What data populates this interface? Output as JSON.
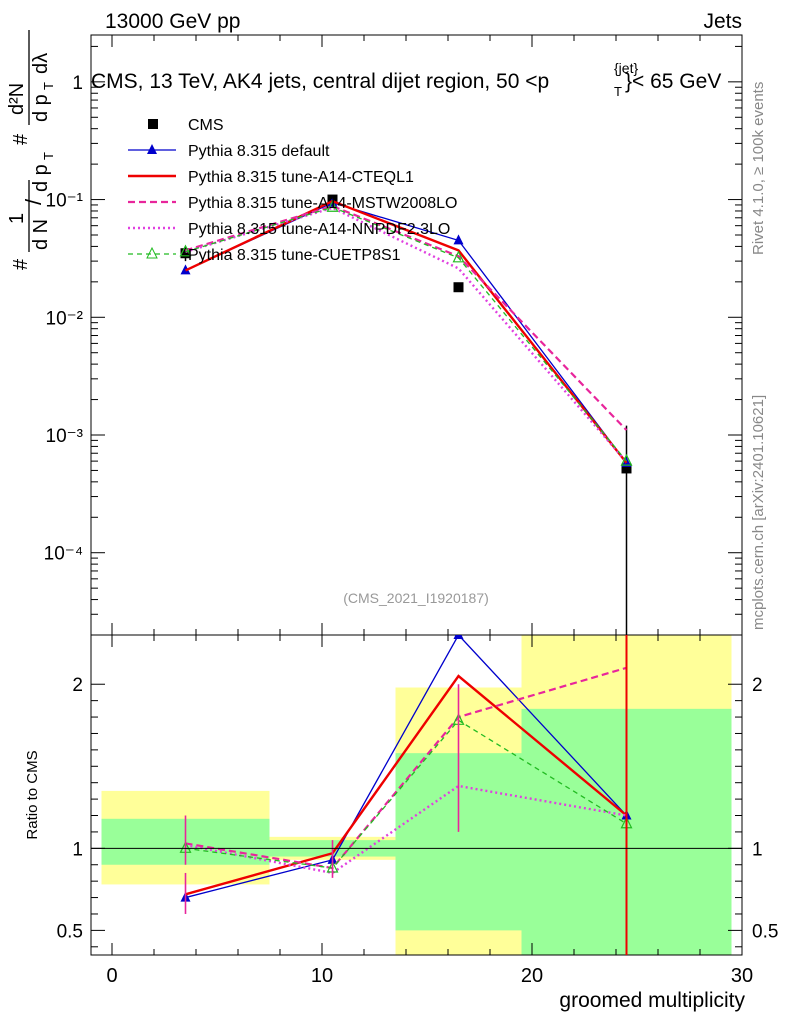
{
  "header": {
    "left": "13000 GeV pp",
    "right": "Jets",
    "title": "CMS, 13 TeV, AK4 jets, central dijet region, 50 <p",
    "title_sup": "{jet}",
    "title_sub": "T",
    "title_end": "}< 65 GeV"
  },
  "side": {
    "rivet": "Rivet 4.1.0, ≥ 100k events",
    "mcplots": "mcplots.cern.ch [arXiv:2401.10621]"
  },
  "analysis_tag": "(CMS_2021_I1920187)",
  "ylabel_main": {
    "hash1": "#",
    "one": "1",
    "dN": "d N",
    "slash": "/",
    "dpT": "d p",
    "T": "T",
    "hash2": "#",
    "d2N": "d²N",
    "dpTdl": "d p",
    "T2": "T",
    "dl": "dλ"
  },
  "ylabel_ratio": "Ratio to CMS",
  "xlabel": "groomed multiplicity",
  "colors": {
    "data": "#000000",
    "default": "#0000cc",
    "cteql1": "#ee0000",
    "mstw": "#e8259b",
    "nnpdf": "#e040e0",
    "cuetp": "#22bb22",
    "band_inner": "#99ff99",
    "band_outer": "#ffff99"
  },
  "chart_data": {
    "type": "line",
    "x": [
      3.5,
      10.5,
      16.5,
      24.5
    ],
    "bin_edges": [
      -0.5,
      7.5,
      13.5,
      19.5,
      29.5
    ],
    "xlim": [
      -1,
      30
    ],
    "xticks": [
      "0",
      "10",
      "20",
      "30"
    ],
    "main": {
      "yscale": "log",
      "ylim": [
        2e-05,
        2.5
      ],
      "yticks": [
        "1",
        "10⁻¹",
        "10⁻²",
        "10⁻³",
        "10⁻⁴"
      ],
      "series": [
        {
          "name": "CMS",
          "key": "data",
          "style": "marker-square",
          "values": [
            0.035,
            0.1,
            0.018,
            0.00052
          ],
          "err_up": [
            0.04,
            0.104,
            0.0185,
            0.0012
          ],
          "err_down": [
            0.03,
            0.096,
            0.017,
            1e-05
          ]
        },
        {
          "name": "Pythia 8.315 default",
          "key": "default",
          "style": "solid-triangle",
          "values": [
            0.025,
            0.094,
            0.045,
            0.00058
          ]
        },
        {
          "name": "Pythia 8.315 tune-A14-CTEQL1",
          "key": "cteql1",
          "style": "solid-thick",
          "values": [
            0.025,
            0.097,
            0.037,
            0.00058
          ]
        },
        {
          "name": "Pythia 8.315 tune-A14-MSTW2008LO",
          "key": "mstw",
          "style": "dashed",
          "values": [
            0.037,
            0.088,
            0.033,
            0.0011
          ]
        },
        {
          "name": "Pythia 8.315 tune-A14-NNPDF2.3LO",
          "key": "nnpdf",
          "style": "dotted",
          "values": [
            0.036,
            0.085,
            0.026,
            0.00059
          ]
        },
        {
          "name": "Pythia 8.315 tune-CUETP8S1",
          "key": "cuetp",
          "style": "dashed-triangle-open",
          "values": [
            0.036,
            0.086,
            0.032,
            0.0006
          ]
        }
      ]
    },
    "ratio": {
      "ylim": [
        0.35,
        2.3
      ],
      "yticks": [
        "0.5",
        "1",
        "2"
      ],
      "band_inner": [
        [
          0.9,
          1.18
        ],
        [
          0.95,
          1.05
        ],
        [
          0.5,
          1.58
        ],
        [
          0.32,
          1.85
        ]
      ],
      "band_outer": [
        [
          0.78,
          1.35
        ],
        [
          0.93,
          1.07
        ],
        [
          0.32,
          1.98
        ],
        [
          0.3,
          2.3
        ]
      ],
      "series": [
        {
          "key": "default",
          "values": [
            0.7,
            0.93,
            2.3,
            1.2
          ]
        },
        {
          "key": "cteql1",
          "values": [
            0.72,
            0.97,
            2.05,
            1.2
          ]
        },
        {
          "key": "mstw",
          "values": [
            1.03,
            0.88,
            1.8,
            2.1
          ]
        },
        {
          "key": "nnpdf",
          "values": [
            1.02,
            0.85,
            1.38,
            1.2
          ]
        },
        {
          "key": "cuetp",
          "values": [
            1.0,
            0.88,
            1.78,
            1.15
          ]
        }
      ]
    }
  }
}
